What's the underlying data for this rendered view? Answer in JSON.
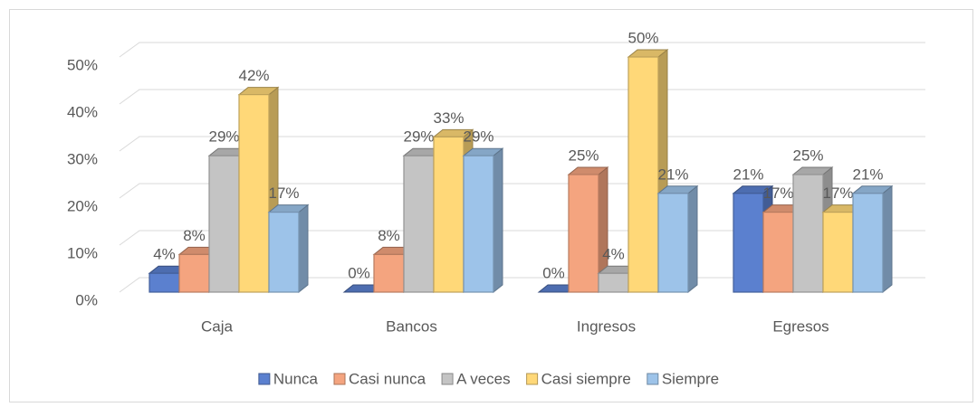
{
  "chart_data": {
    "type": "bar3d",
    "categories": [
      "Caja",
      "Bancos",
      "Ingresos",
      "Egresos"
    ],
    "series": [
      {
        "name": "Nunca",
        "color": "#5b80cf",
        "values": [
          4,
          0,
          0,
          21
        ],
        "value_labels": [
          "4%",
          "0%",
          "0%",
          "21%"
        ]
      },
      {
        "name": "Casi nunca",
        "color": "#f4a47f",
        "values": [
          8,
          8,
          25,
          17
        ],
        "value_labels": [
          "8%",
          "8%",
          "25%",
          "17%"
        ]
      },
      {
        "name": "A veces",
        "color": "#c4c4c4",
        "values": [
          29,
          29,
          4,
          25
        ],
        "value_labels": [
          "29%",
          "29%",
          "4%",
          "25%"
        ]
      },
      {
        "name": "Casi siempre",
        "color": "#ffd878",
        "values": [
          42,
          33,
          50,
          17
        ],
        "value_labels": [
          "42%",
          "33%",
          "50%",
          "17%"
        ]
      },
      {
        "name": "Siempre",
        "color": "#9dc3e9",
        "values": [
          17,
          29,
          21,
          21
        ],
        "value_labels": [
          "17%",
          "29%",
          "21%",
          "21%"
        ]
      }
    ],
    "ylim": [
      0,
      50
    ],
    "yticks": [
      {
        "value": 0,
        "label": "0%"
      },
      {
        "value": 10,
        "label": "10%"
      },
      {
        "value": 20,
        "label": "20%"
      },
      {
        "value": 30,
        "label": "30%"
      },
      {
        "value": 40,
        "label": "40%"
      },
      {
        "value": 50,
        "label": "50%"
      }
    ],
    "grid": true,
    "legend": "bottom"
  }
}
